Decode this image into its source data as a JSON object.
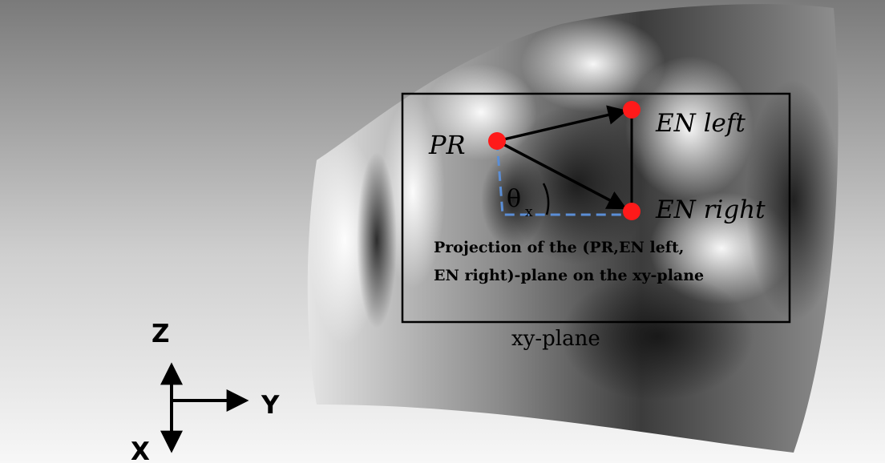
{
  "points": {
    "pr": "PR",
    "en_left": "EN left",
    "en_right": "EN right"
  },
  "angle": {
    "symbol": "θ",
    "subscript": "x"
  },
  "projection_note": {
    "line1": "Projection of the (PR,EN left,",
    "line2": "EN right)-plane on the xy-plane"
  },
  "plane_label": "xy-plane",
  "axes": {
    "z": "Z",
    "y": "Y",
    "x": "X"
  },
  "colors": {
    "landmark": "#ff1a1a",
    "projection_dash": "#5b8ed6",
    "outline": "#000000"
  }
}
